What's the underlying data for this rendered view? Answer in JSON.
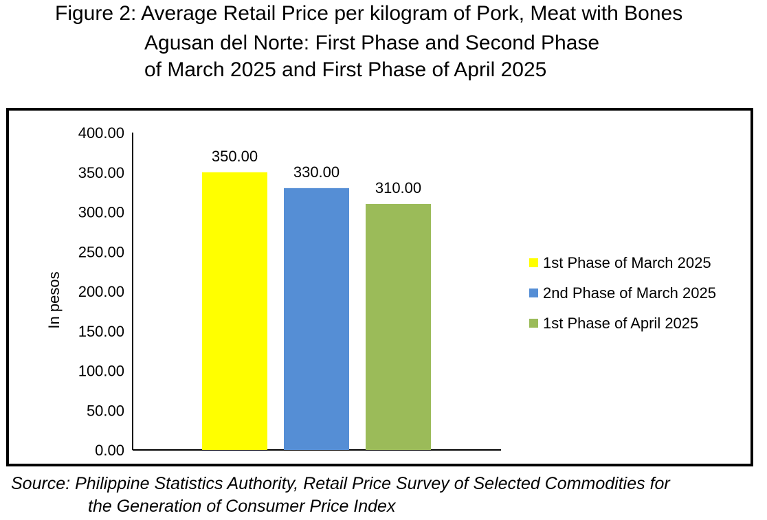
{
  "title_lines": [
    "Figure 2: Average Retail Price per kilogram of Pork, Meat with Bones",
    "Agusan del Norte: First Phase and Second Phase",
    "of March 2025 and First Phase of April 2025"
  ],
  "source_lines": [
    "Source: Philippine Statistics Authority, Retail Price Survey of Selected Commodities for",
    "the Generation of Consumer Price Index"
  ],
  "chart_data": {
    "type": "bar",
    "title": "Figure 2: Average Retail Price per kilogram of Pork, Meat with Bones Agusan del Norte: First Phase and Second Phase of March 2025 and First Phase of April 2025",
    "ylabel": "In pesos",
    "xlabel": "",
    "ylim": [
      0,
      400
    ],
    "yticks": [
      "0.00",
      "50.00",
      "100.00",
      "150.00",
      "200.00",
      "250.00",
      "300.00",
      "350.00",
      "400.00"
    ],
    "legend_position": "right",
    "grid": false,
    "series": [
      {
        "name": "1st Phase of March 2025",
        "value": 350,
        "label": "350.00",
        "color": "#FFFF00"
      },
      {
        "name": "2nd Phase of March 2025",
        "value": 330,
        "label": "330.00",
        "color": "#558ED5"
      },
      {
        "name": "1st Phase of April 2025",
        "value": 310,
        "label": "310.00",
        "color": "#9BBB59"
      }
    ]
  }
}
